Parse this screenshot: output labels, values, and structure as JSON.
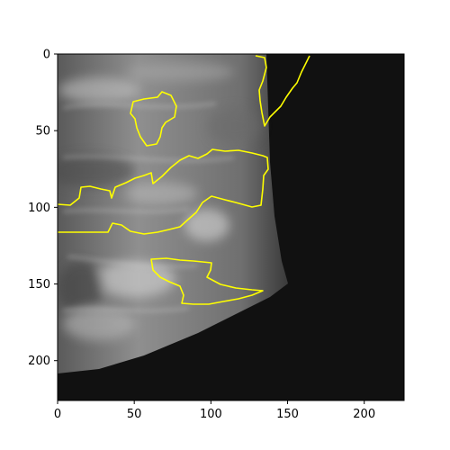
{
  "figure": {
    "x_ticks": [
      "0",
      "50",
      "100",
      "150",
      "200"
    ],
    "y_ticks": [
      "0",
      "50",
      "100",
      "150",
      "200"
    ],
    "image_extent": {
      "x": [
        0,
        226
      ],
      "y": [
        226,
        0
      ]
    },
    "background_color": "#111111",
    "tissue_color": "#8a8a8a",
    "contour_color": "#ffff00"
  }
}
